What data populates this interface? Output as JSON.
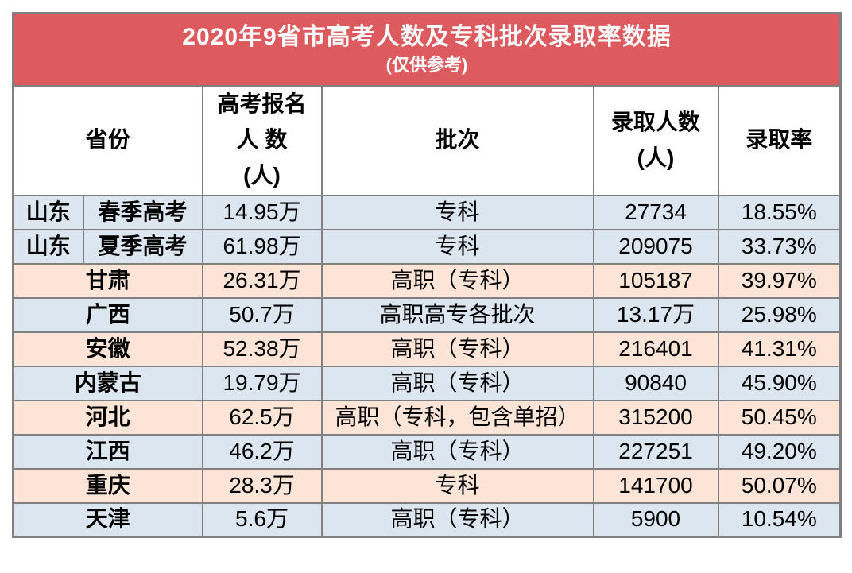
{
  "chart_data": {
    "type": "table",
    "title": "2020年9省市高考人数及专科批次录取率数据",
    "subtitle": "(仅供参考)",
    "headers": {
      "province": "省份",
      "registered_lines": [
        "高考报名",
        "人 数",
        "(人)"
      ],
      "batch": "批次",
      "admitted_lines": [
        "录取人数",
        "(人)"
      ],
      "rate": "录取率"
    },
    "rows": [
      {
        "province": "山东",
        "province_sub": "春季高考",
        "registered": "14.95万",
        "batch": "专科",
        "admitted": "27734",
        "rate": "18.55%",
        "bg": "blue"
      },
      {
        "province": "山东",
        "province_sub": "夏季高考",
        "registered": "61.98万",
        "batch": "专科",
        "admitted": "209075",
        "rate": "33.73%",
        "bg": "blue"
      },
      {
        "province": "甘肃",
        "province_sub": "",
        "registered": "26.31万",
        "batch": "高职（专科）",
        "admitted": "105187",
        "rate": "39.97%",
        "bg": "peach"
      },
      {
        "province": "广西",
        "province_sub": "",
        "registered": "50.7万",
        "batch": "高职高专各批次",
        "admitted": "13.17万",
        "rate": "25.98%",
        "bg": "blue"
      },
      {
        "province": "安徽",
        "province_sub": "",
        "registered": "52.38万",
        "batch": "高职（专科）",
        "admitted": "216401",
        "rate": "41.31%",
        "bg": "peach"
      },
      {
        "province": "内蒙古",
        "province_sub": "",
        "registered": "19.79万",
        "batch": "高职（专科）",
        "admitted": "90840",
        "rate": "45.90%",
        "bg": "blue"
      },
      {
        "province": "河北",
        "province_sub": "",
        "registered": "62.5万",
        "batch": "高职（专科，包含单招）",
        "admitted": "315200",
        "rate": "50.45%",
        "bg": "peach"
      },
      {
        "province": "江西",
        "province_sub": "",
        "registered": "46.2万",
        "batch": "高职（专科）",
        "admitted": "227251",
        "rate": "49.20%",
        "bg": "blue"
      },
      {
        "province": "重庆",
        "province_sub": "",
        "registered": "28.3万",
        "batch": "专科",
        "admitted": "141700",
        "rate": "50.07%",
        "bg": "peach"
      },
      {
        "province": "天津",
        "province_sub": "",
        "registered": "5.6万",
        "batch": "高职（专科）",
        "admitted": "5900",
        "rate": "10.54%",
        "bg": "blue"
      }
    ]
  },
  "colors": {
    "banner_bg": "#DD5B5F",
    "banner_text": "#FFFFFF",
    "row_blue": "#DCE6F1",
    "row_peach": "#FCE4D6",
    "border": "#808080",
    "text": "#000000"
  }
}
